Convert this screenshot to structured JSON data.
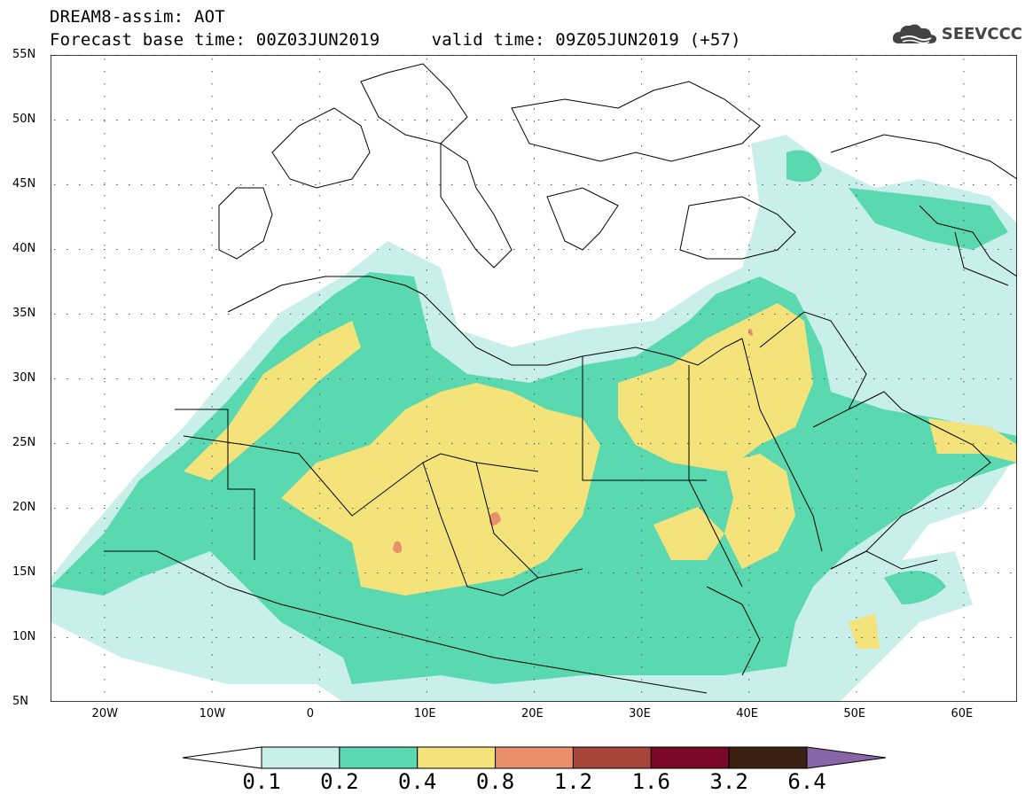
{
  "header": {
    "title_line1": "DREAM8-assim: AOT",
    "title_line2": "Forecast base time: 00Z03JUN2019     valid time: 09Z05JUN2019 (+57)",
    "logo_text": "SEEVCCC",
    "logo_icon": "cloud-icon"
  },
  "map": {
    "lat_labels": [
      "55N",
      "50N",
      "45N",
      "40N",
      "35N",
      "30N",
      "25N",
      "20N",
      "15N",
      "10N",
      "5N"
    ],
    "lon_labels": [
      "20W",
      "10W",
      "0",
      "10E",
      "20E",
      "30E",
      "40E",
      "50E",
      "60E"
    ],
    "lat_range": [
      5,
      55
    ],
    "lon_range": [
      -25,
      65
    ],
    "field": "AOT"
  },
  "colorbar": {
    "levels": [
      "0.1",
      "0.2",
      "0.4",
      "0.8",
      "1.2",
      "1.6",
      "3.2",
      "6.4"
    ],
    "colors": [
      "#ffffff",
      "#c8efe9",
      "#5ad8b0",
      "#f4e27a",
      "#e8906a",
      "#a8453a",
      "#7a0628",
      "#3a2010",
      "#8a64a8"
    ]
  }
}
